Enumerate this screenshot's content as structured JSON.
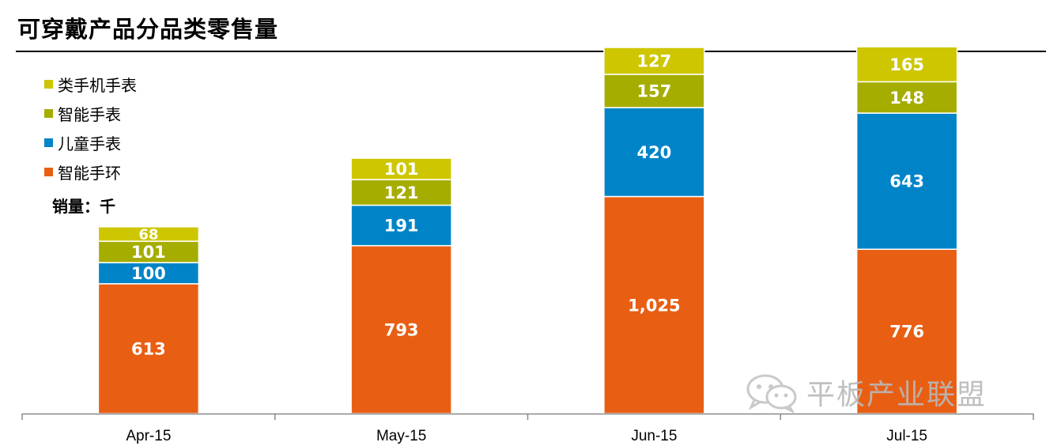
{
  "title": "可穿戴产品分品类零售量",
  "unit_label": "销量：千",
  "watermark": "平板产业联盟",
  "chart_data": {
    "type": "bar",
    "stacked": true,
    "title": "可穿戴产品分品类零售量",
    "xlabel": "",
    "ylabel": "",
    "categories": [
      "Apr-15",
      "May-15",
      "Jun-15",
      "Jul-15"
    ],
    "series": [
      {
        "name": "智能手环",
        "color": "#e85f14",
        "values": [
          613,
          793,
          1025,
          776
        ],
        "labels": [
          "613",
          "793",
          "1,025",
          "776"
        ]
      },
      {
        "name": "儿童手表",
        "color": "#0084c7",
        "values": [
          100,
          191,
          420,
          643
        ],
        "labels": [
          "100",
          "191",
          "420",
          "643"
        ]
      },
      {
        "name": "智能手表",
        "color": "#a5ad00",
        "values": [
          101,
          121,
          157,
          148
        ],
        "labels": [
          "101",
          "121",
          "157",
          "148"
        ]
      },
      {
        "name": "类手机手表",
        "color": "#cdc600",
        "values": [
          68,
          101,
          127,
          165
        ],
        "labels": [
          "68",
          "101",
          "127",
          "165"
        ]
      }
    ],
    "legend_order": [
      "类手机手表",
      "智能手表",
      "儿童手表",
      "智能手环"
    ],
    "legend_position": "top-left",
    "grid": false,
    "ylim": [
      0,
      1729
    ]
  }
}
